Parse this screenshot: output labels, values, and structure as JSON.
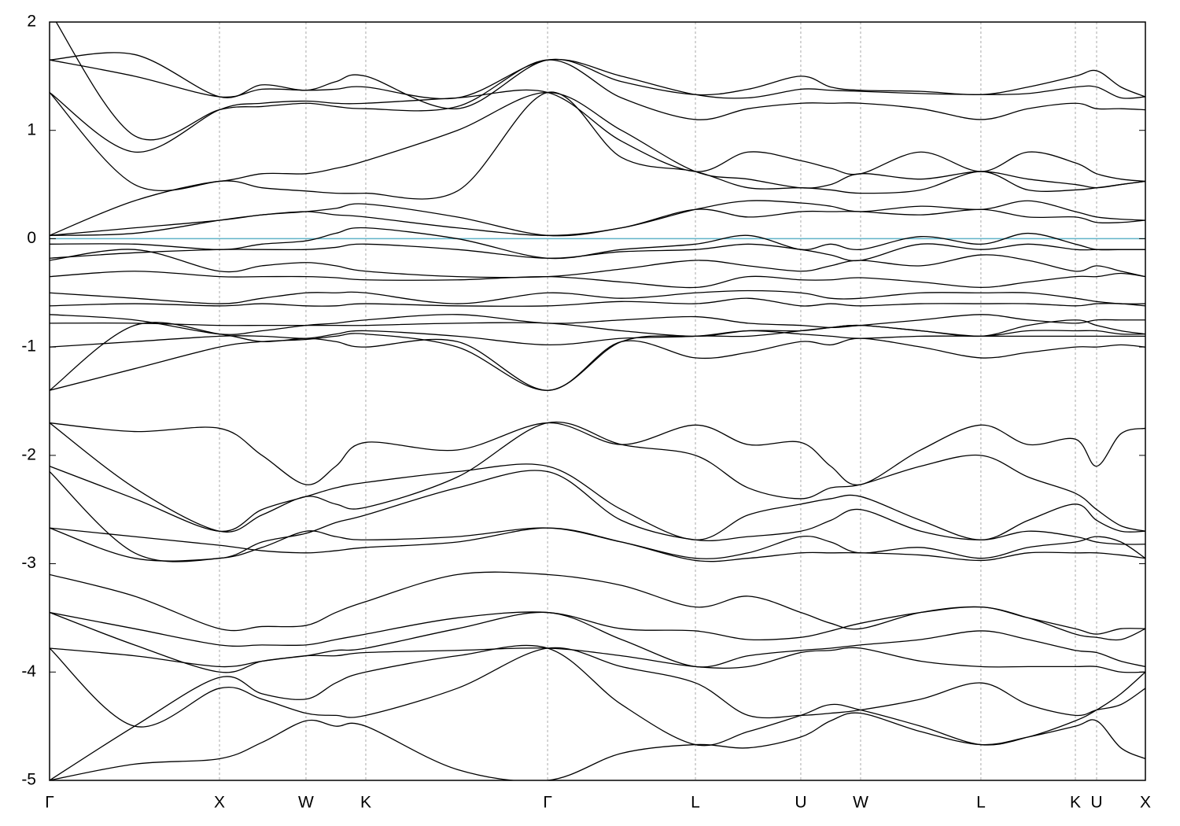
{
  "chart_data": {
    "type": "band-structure",
    "xlim": [
      0,
      6.449
    ],
    "ylim": [
      -5,
      2
    ],
    "yticks": [
      -5,
      -4,
      -3,
      -2,
      -1,
      0,
      1,
      2
    ],
    "xticks": [
      {
        "value": 0,
        "label": "Γ"
      },
      {
        "value": 1,
        "label": "X"
      },
      {
        "value": 1.509,
        "label": "W"
      },
      {
        "value": 1.861,
        "label": "K"
      },
      {
        "value": 2.931,
        "label": "Γ"
      },
      {
        "value": 3.801,
        "label": "L"
      },
      {
        "value": 4.421,
        "label": "U"
      },
      {
        "value": 4.773,
        "label": "W"
      },
      {
        "value": 5.481,
        "label": "L"
      },
      {
        "value": 6.037,
        "label": "K"
      },
      {
        "value": 6.162,
        "label": "U"
      },
      {
        "value": 6.449,
        "label": "X"
      }
    ],
    "xgrid": true,
    "line_color": "#000000",
    "fermi_level": 0,
    "fermi_color": "#5fb3c8",
    "x": [
      0,
      0.5,
      1,
      1.25,
      1.509,
      1.685,
      1.861,
      2.4,
      2.931,
      3.366,
      3.801,
      4.111,
      4.421,
      4.597,
      4.773,
      5.127,
      5.481,
      5.759,
      6.037,
      6.162,
      6.305,
      6.449
    ],
    "bands": [
      [
        1.65,
        1.7,
        1.31,
        1.42,
        1.37,
        1.45,
        1.5,
        1.2,
        1.65,
        1.45,
        1.33,
        1.38,
        1.5,
        1.4,
        1.37,
        1.36,
        1.33,
        1.4,
        1.5,
        1.55,
        1.4,
        1.31
      ],
      [
        1.65,
        1.5,
        1.31,
        1.38,
        1.37,
        1.38,
        1.4,
        1.3,
        1.65,
        1.5,
        1.33,
        1.3,
        1.38,
        1.37,
        1.36,
        1.34,
        1.33,
        1.34,
        1.4,
        1.4,
        1.3,
        1.31
      ],
      [
        1.35,
        0.8,
        1.19,
        1.25,
        1.27,
        1.25,
        1.25,
        1.3,
        1.35,
        0.9,
        0.62,
        0.8,
        0.72,
        0.65,
        0.6,
        0.8,
        0.62,
        0.8,
        0.7,
        0.6,
        0.55,
        0.53
      ],
      [
        1.35,
        0.5,
        0.53,
        0.6,
        0.6,
        0.65,
        0.72,
        1.0,
        1.35,
        1.0,
        0.62,
        0.55,
        0.47,
        0.5,
        0.6,
        0.55,
        0.62,
        0.55,
        0.5,
        0.47,
        0.5,
        0.53
      ],
      [
        2.1,
        0.95,
        1.19,
        1.22,
        1.25,
        1.22,
        1.2,
        1.22,
        1.65,
        1.3,
        1.1,
        1.2,
        1.25,
        1.25,
        1.25,
        1.2,
        1.1,
        1.2,
        1.25,
        1.2,
        1.2,
        1.19
      ],
      [
        0.03,
        0.35,
        0.53,
        0.47,
        0.44,
        0.42,
        0.42,
        0.44,
        1.35,
        0.75,
        0.62,
        0.47,
        0.47,
        0.45,
        0.42,
        0.45,
        0.62,
        0.45,
        0.45,
        0.47,
        0.5,
        0.53
      ],
      [
        0.03,
        0.1,
        0.17,
        0.22,
        0.25,
        0.22,
        0.2,
        0.1,
        0.03,
        0.1,
        0.27,
        0.2,
        0.25,
        0.25,
        0.25,
        0.22,
        0.27,
        0.2,
        0.2,
        0.15,
        0.15,
        0.17
      ],
      [
        0.03,
        0.05,
        0.17,
        0.22,
        0.25,
        0.28,
        0.32,
        0.2,
        0.03,
        0.1,
        0.27,
        0.35,
        0.33,
        0.3,
        0.25,
        0.3,
        0.27,
        0.35,
        0.25,
        0.2,
        0.18,
        0.17
      ],
      [
        -0.05,
        -0.05,
        -0.1,
        -0.05,
        -0.02,
        0.05,
        0.1,
        0.0,
        -0.18,
        -0.1,
        -0.05,
        0.03,
        -0.1,
        -0.05,
        -0.1,
        0.02,
        -0.05,
        0.05,
        -0.05,
        -0.1,
        -0.1,
        -0.1
      ],
      [
        -0.18,
        -0.13,
        -0.1,
        -0.1,
        -0.1,
        -0.08,
        -0.05,
        -0.1,
        -0.18,
        -0.12,
        -0.1,
        -0.05,
        -0.1,
        -0.15,
        -0.2,
        -0.05,
        -0.1,
        -0.05,
        -0.1,
        -0.1,
        -0.1,
        -0.1
      ],
      [
        -0.2,
        -0.1,
        -0.3,
        -0.25,
        -0.22,
        -0.25,
        -0.3,
        -0.35,
        -0.35,
        -0.28,
        -0.2,
        -0.25,
        -0.3,
        -0.25,
        -0.2,
        -0.25,
        -0.15,
        -0.2,
        -0.3,
        -0.25,
        -0.3,
        -0.35
      ],
      [
        -0.35,
        -0.3,
        -0.35,
        -0.35,
        -0.35,
        -0.36,
        -0.38,
        -0.38,
        -0.35,
        -0.4,
        -0.45,
        -0.35,
        -0.38,
        -0.38,
        -0.36,
        -0.4,
        -0.45,
        -0.4,
        -0.35,
        -0.35,
        -0.32,
        -0.35
      ],
      [
        -0.5,
        -0.55,
        -0.6,
        -0.55,
        -0.5,
        -0.5,
        -0.5,
        -0.6,
        -0.5,
        -0.55,
        -0.5,
        -0.48,
        -0.5,
        -0.55,
        -0.55,
        -0.5,
        -0.5,
        -0.5,
        -0.55,
        -0.58,
        -0.6,
        -0.6
      ],
      [
        -0.62,
        -0.6,
        -0.62,
        -0.6,
        -0.62,
        -0.62,
        -0.6,
        -0.62,
        -0.62,
        -0.58,
        -0.6,
        -0.55,
        -0.62,
        -0.6,
        -0.62,
        -0.6,
        -0.6,
        -0.6,
        -0.62,
        -0.6,
        -0.6,
        -0.62
      ],
      [
        -0.7,
        -0.75,
        -0.88,
        -0.85,
        -0.8,
        -0.78,
        -0.75,
        -0.7,
        -0.78,
        -0.75,
        -0.72,
        -0.78,
        -0.8,
        -0.82,
        -0.8,
        -0.75,
        -0.7,
        -0.75,
        -0.78,
        -0.75,
        -0.75,
        -0.75
      ],
      [
        -0.78,
        -0.78,
        -0.8,
        -0.8,
        -0.8,
        -0.8,
        -0.8,
        -0.78,
        -0.78,
        -0.85,
        -0.9,
        -0.85,
        -0.85,
        -0.82,
        -0.8,
        -0.85,
        -0.9,
        -0.85,
        -0.85,
        -0.85,
        -0.88,
        -0.88
      ],
      [
        -1.0,
        -0.95,
        -0.9,
        -0.9,
        -0.92,
        -0.88,
        -0.85,
        -0.9,
        -0.98,
        -0.92,
        -0.9,
        -0.85,
        -0.88,
        -0.9,
        -0.92,
        -0.9,
        -0.9,
        -0.9,
        -0.9,
        -0.9,
        -0.9,
        -0.9
      ],
      [
        -1.4,
        -0.8,
        -0.88,
        -0.95,
        -0.92,
        -0.95,
        -1.0,
        -0.95,
        -1.4,
        -0.95,
        -1.1,
        -1.05,
        -0.95,
        -0.98,
        -0.92,
        -1.0,
        -1.1,
        -1.05,
        -1.0,
        -1.0,
        -0.98,
        -1.0
      ],
      [
        -1.4,
        -1.2,
        -1.0,
        -0.95,
        -0.93,
        -0.9,
        -0.88,
        -1.0,
        -1.4,
        -0.95,
        -0.9,
        -0.9,
        -0.85,
        -0.82,
        -0.8,
        -0.85,
        -0.9,
        -0.8,
        -0.75,
        -0.8,
        -0.85,
        -0.88
      ],
      [
        -1.7,
        -1.78,
        -1.75,
        -2.0,
        -2.27,
        -2.1,
        -1.88,
        -1.95,
        -1.7,
        -1.9,
        -1.72,
        -1.9,
        -1.88,
        -2.1,
        -2.27,
        -1.95,
        -1.72,
        -1.9,
        -1.85,
        -2.1,
        -1.8,
        -1.75
      ],
      [
        -1.7,
        -2.3,
        -2.7,
        -2.55,
        -2.38,
        -2.45,
        -2.48,
        -2.2,
        -1.7,
        -1.9,
        -2.0,
        -2.3,
        -2.4,
        -2.3,
        -2.27,
        -2.1,
        -2.0,
        -2.2,
        -2.35,
        -2.5,
        -2.65,
        -2.7
      ],
      [
        -2.1,
        -2.4,
        -2.7,
        -2.5,
        -2.38,
        -2.3,
        -2.25,
        -2.15,
        -2.1,
        -2.5,
        -2.78,
        -2.55,
        -2.45,
        -2.4,
        -2.38,
        -2.6,
        -2.78,
        -2.6,
        -2.45,
        -2.6,
        -2.7,
        -2.7
      ],
      [
        -2.15,
        -2.9,
        -2.95,
        -2.8,
        -2.72,
        -2.62,
        -2.55,
        -2.3,
        -2.15,
        -2.6,
        -2.78,
        -2.75,
        -2.7,
        -2.6,
        -2.5,
        -2.7,
        -2.78,
        -2.7,
        -2.75,
        -2.8,
        -2.82,
        -2.82
      ],
      [
        -2.67,
        -2.75,
        -2.83,
        -2.88,
        -2.9,
        -2.88,
        -2.85,
        -2.8,
        -2.67,
        -2.8,
        -2.97,
        -2.95,
        -2.9,
        -2.9,
        -2.9,
        -2.92,
        -2.97,
        -2.9,
        -2.9,
        -2.9,
        -2.92,
        -2.95
      ],
      [
        -2.67,
        -2.95,
        -2.95,
        -2.85,
        -2.7,
        -2.75,
        -2.78,
        -2.75,
        -2.67,
        -2.8,
        -2.95,
        -2.9,
        -2.75,
        -2.8,
        -2.9,
        -2.85,
        -2.95,
        -2.85,
        -2.8,
        -2.75,
        -2.8,
        -2.95
      ],
      [
        -3.1,
        -3.3,
        -3.6,
        -3.58,
        -3.57,
        -3.45,
        -3.35,
        -3.1,
        -3.1,
        -3.2,
        -3.4,
        -3.3,
        -3.45,
        -3.55,
        -3.6,
        -3.45,
        -3.4,
        -3.5,
        -3.6,
        -3.65,
        -3.6,
        -3.6
      ],
      [
        -3.45,
        -3.6,
        -3.75,
        -3.75,
        -3.75,
        -3.7,
        -3.65,
        -3.5,
        -3.45,
        -3.6,
        -3.62,
        -3.7,
        -3.68,
        -3.62,
        -3.55,
        -3.45,
        -3.4,
        -3.5,
        -3.65,
        -3.68,
        -3.7,
        -3.6
      ],
      [
        -3.45,
        -3.75,
        -4.0,
        -3.9,
        -3.85,
        -3.8,
        -3.78,
        -3.6,
        -3.45,
        -3.7,
        -3.95,
        -3.85,
        -3.8,
        -3.78,
        -3.75,
        -3.7,
        -3.62,
        -3.7,
        -3.8,
        -3.82,
        -3.9,
        -3.95
      ],
      [
        -3.78,
        -3.85,
        -3.95,
        -3.9,
        -3.85,
        -3.85,
        -3.82,
        -3.8,
        -3.78,
        -3.85,
        -3.95,
        -3.95,
        -3.82,
        -3.8,
        -3.78,
        -3.9,
        -3.95,
        -3.95,
        -3.95,
        -3.95,
        -4.0,
        -4.0
      ],
      [
        -3.78,
        -4.5,
        -4.15,
        -4.25,
        -4.38,
        -4.4,
        -4.4,
        -4.15,
        -3.78,
        -3.95,
        -4.1,
        -4.4,
        -4.4,
        -4.38,
        -4.35,
        -4.25,
        -4.1,
        -4.3,
        -4.4,
        -4.35,
        -4.3,
        -4.15
      ],
      [
        -5.0,
        -4.5,
        -4.05,
        -4.2,
        -4.25,
        -4.1,
        -4.0,
        -3.85,
        -3.78,
        -4.3,
        -4.67,
        -4.55,
        -4.4,
        -4.3,
        -4.35,
        -4.5,
        -4.67,
        -4.6,
        -4.45,
        -4.35,
        -4.2,
        -4.0
      ],
      [
        -5.0,
        -4.85,
        -4.8,
        -4.65,
        -4.45,
        -4.5,
        -4.5,
        -4.9,
        -5.0,
        -4.75,
        -4.67,
        -4.7,
        -4.6,
        -4.45,
        -4.38,
        -4.55,
        -4.67,
        -4.6,
        -4.5,
        -4.45,
        -4.7,
        -4.8
      ]
    ]
  }
}
